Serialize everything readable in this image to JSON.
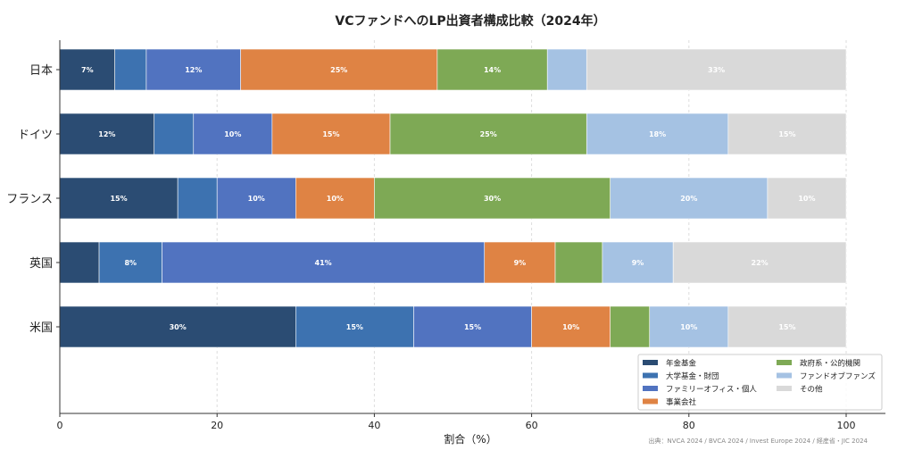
{
  "chart_data": {
    "type": "bar",
    "orientation": "horizontal",
    "stacked": true,
    "title": "VCファンドへのLP出資者構成比較（2024年）",
    "xlabel": "割合（%）",
    "ylabel": "",
    "xlim": [
      0,
      100
    ],
    "xticks": [
      0,
      20,
      40,
      60,
      80,
      100
    ],
    "grid": "vertical dashed",
    "legend_placement": "bottom-right",
    "source": "出典：NVCA 2024 / BVCA 2024 / Invest Europe 2024 / 経産省・JIC 2024",
    "categories": [
      "日本",
      "ドイツ",
      "フランス",
      "英国",
      "米国"
    ],
    "series": [
      {
        "name": "年金基金",
        "color": "#2b4c73",
        "values": [
          7,
          12,
          15,
          5,
          30
        ]
      },
      {
        "name": "大学基金・財団",
        "color": "#3d72b0",
        "values": [
          4,
          5,
          5,
          8,
          15
        ]
      },
      {
        "name": "ファミリーオフィス・個人",
        "color": "#5173c0",
        "values": [
          12,
          10,
          10,
          41,
          15
        ]
      },
      {
        "name": "事業会社",
        "color": "#df8344",
        "values": [
          25,
          15,
          10,
          9,
          10
        ]
      },
      {
        "name": "政府系・公的機関",
        "color": "#7ea955",
        "values": [
          14,
          25,
          30,
          6,
          5
        ]
      },
      {
        "name": "ファンドオブファンズ",
        "color": "#a5c2e3",
        "values": [
          5,
          18,
          20,
          9,
          10
        ]
      },
      {
        "name": "その他",
        "color": "#d9d9d9",
        "values": [
          33,
          15,
          10,
          22,
          15
        ]
      }
    ],
    "data_label_min": 7
  }
}
